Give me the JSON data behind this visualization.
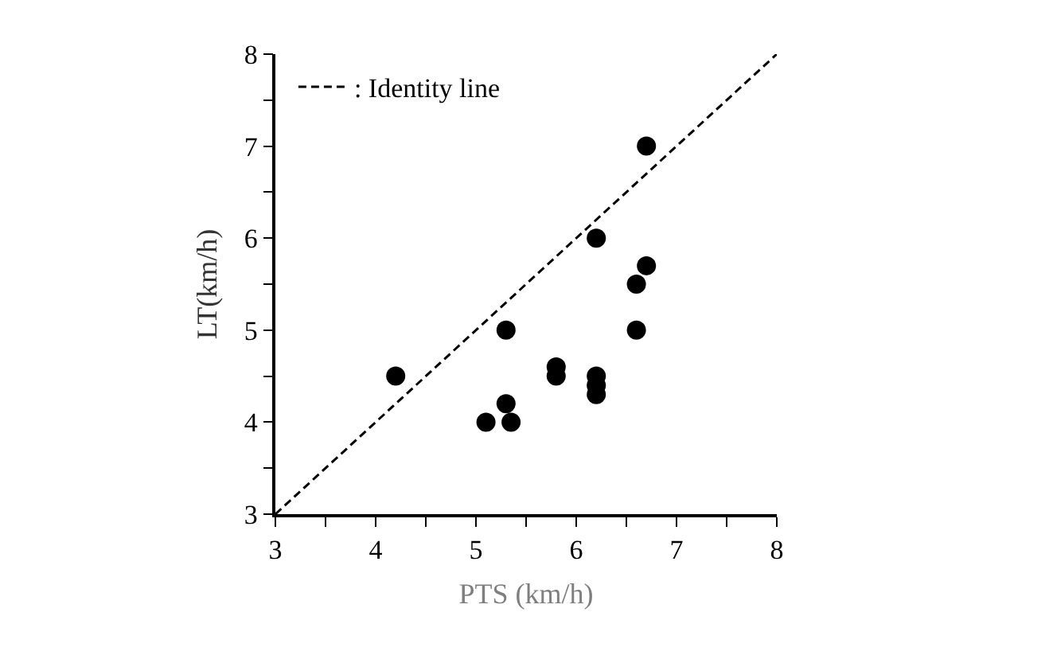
{
  "chart_data": {
    "type": "scatter",
    "xlabel": "PTS (km/h)",
    "ylabel": "LT(km/h)",
    "xlim": [
      3,
      8
    ],
    "ylim": [
      3,
      8
    ],
    "xticks": [
      3,
      {
        "value": 3.5,
        "label": null
      },
      4,
      {
        "value": 4.5,
        "label": null
      },
      5,
      {
        "value": 5.5,
        "label": null
      },
      6,
      {
        "value": 6.5,
        "label": null
      },
      7,
      {
        "value": 7.5,
        "label": null
      },
      8
    ],
    "yticks": [
      3,
      {
        "value": 3.5,
        "label": null
      },
      4,
      {
        "value": 4.5,
        "label": null
      },
      5,
      {
        "value": 5.5,
        "label": null
      },
      6,
      {
        "value": 6.5,
        "label": null
      },
      7,
      {
        "value": 7.5,
        "label": null
      },
      8
    ],
    "grid": false,
    "legend": "top left",
    "marker": "circle",
    "series": [
      {
        "color": "#000000",
        "x": [
          4.2,
          5.1,
          5.3,
          5.35,
          5.3,
          5.8,
          5.8,
          6.2,
          6.2,
          6.2,
          6.2,
          6.6,
          6.6,
          6.7,
          6.7
        ],
        "values": [
          4.5,
          4.0,
          4.2,
          4.0,
          5.0,
          4.6,
          4.5,
          6.0,
          4.5,
          4.4,
          4.3,
          5.5,
          5.0,
          5.7,
          7.0
        ]
      },
      {
        "type": "line",
        "name": ": Identity line",
        "color": "#000000",
        "line_style": "dashed",
        "marker": "none",
        "x": [
          3,
          8
        ],
        "values": [
          3,
          8
        ]
      }
    ]
  }
}
